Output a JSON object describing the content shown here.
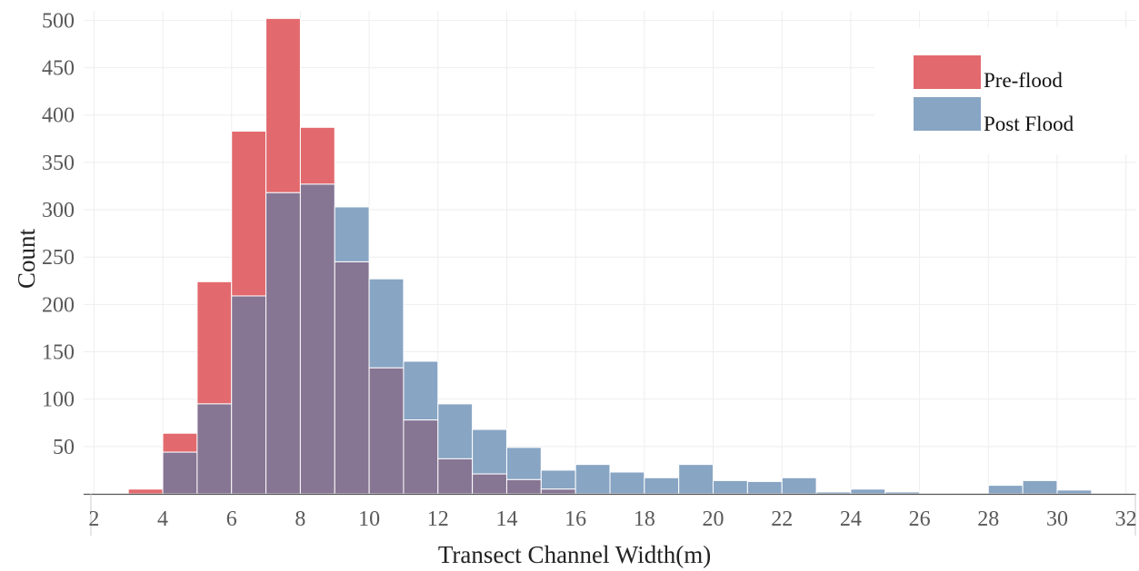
{
  "chart_data": {
    "type": "bar",
    "xlabel": "Transect Channel Width(m)",
    "ylabel": "Count",
    "xlim": [
      1.7,
      32.3
    ],
    "ylim": [
      0,
      510
    ],
    "xticks": [
      2,
      4,
      6,
      8,
      10,
      12,
      14,
      16,
      18,
      20,
      22,
      24,
      26,
      28,
      30,
      32
    ],
    "yticks": [
      50,
      100,
      150,
      200,
      250,
      300,
      350,
      400,
      450,
      500
    ],
    "bin_width": 1,
    "bin_starts": [
      3,
      4,
      5,
      6,
      7,
      8,
      9,
      10,
      11,
      12,
      13,
      14,
      15,
      16,
      17,
      18,
      19,
      20,
      21,
      22,
      23,
      24,
      25,
      26,
      27,
      28,
      29,
      30
    ],
    "series": [
      {
        "name": "Pre-flood",
        "color": "#e26a6e",
        "values": [
          5,
          64,
          224,
          383,
          502,
          387,
          245,
          133,
          78,
          37,
          21,
          15,
          5,
          0,
          0,
          0,
          0,
          0,
          0,
          0,
          0,
          0,
          0,
          0,
          0,
          0,
          0,
          0
        ]
      },
      {
        "name": "Post Flood",
        "color": "#88a5c4",
        "values": [
          0,
          44,
          95,
          209,
          318,
          327,
          303,
          227,
          140,
          95,
          68,
          49,
          25,
          31,
          23,
          17,
          31,
          14,
          13,
          17,
          2,
          5,
          2,
          0,
          1,
          9,
          14,
          4
        ]
      }
    ],
    "overlap_color": "#867593",
    "grid": true,
    "legend_position": "top-right"
  }
}
